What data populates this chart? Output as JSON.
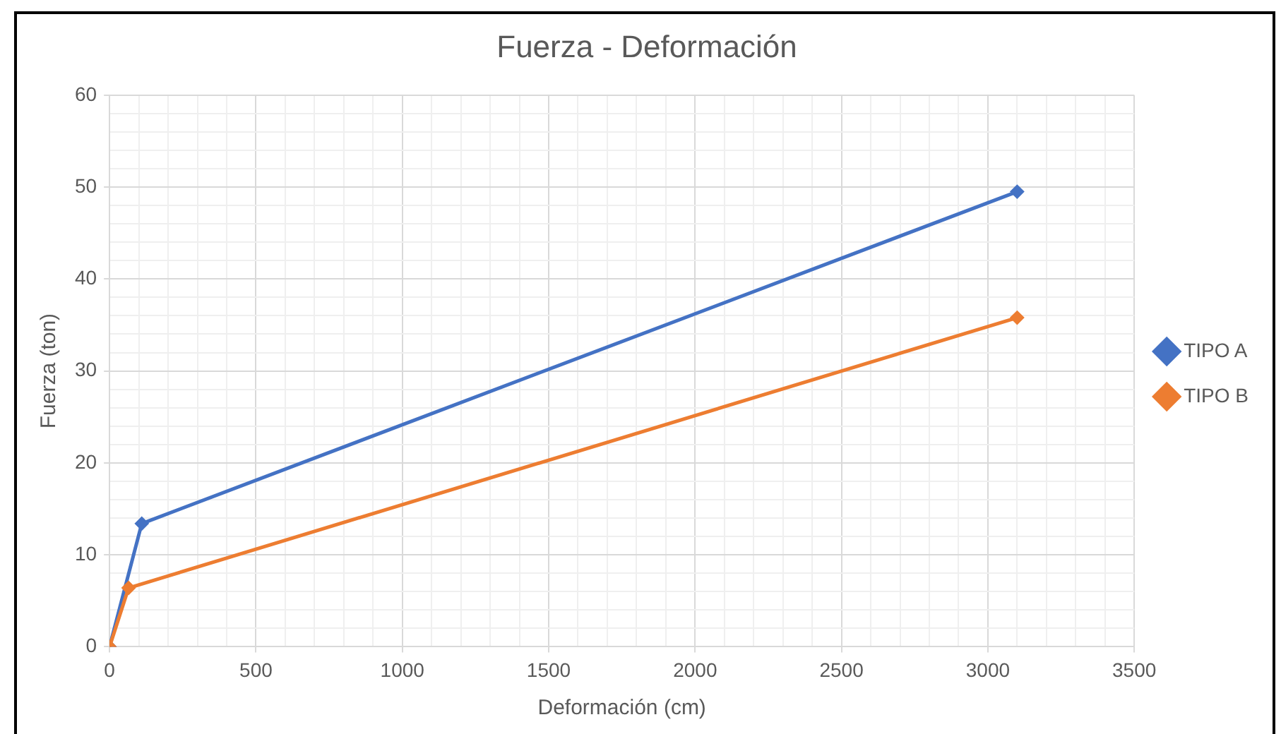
{
  "chart_data": {
    "type": "line",
    "title": "Fuerza - Deformación",
    "xlabel": "Deformación (cm)",
    "ylabel": "Fuerza (ton)",
    "series": [
      {
        "name": "TIPO A",
        "color": "#4472c4",
        "x": [
          0,
          110,
          3100
        ],
        "values": [
          0,
          13.4,
          49.5
        ]
      },
      {
        "name": "TIPO B",
        "color": "#ed7d31",
        "x": [
          0,
          65,
          3100
        ],
        "values": [
          0,
          6.4,
          35.8
        ]
      }
    ],
    "xlim": [
      0,
      3500
    ],
    "xticks": [
      0,
      {
        "value": 100,
        "label": null
      },
      {
        "value": 200,
        "label": null
      },
      {
        "value": 300,
        "label": null
      },
      {
        "value": 400,
        "label": null
      },
      500,
      {
        "value": 600,
        "label": null
      },
      {
        "value": 700,
        "label": null
      },
      {
        "value": 800,
        "label": null
      },
      {
        "value": 900,
        "label": null
      },
      1000,
      {
        "value": 1100,
        "label": null
      },
      {
        "value": 1200,
        "label": null
      },
      {
        "value": 1300,
        "label": null
      },
      {
        "value": 1400,
        "label": null
      },
      1500,
      {
        "value": 1600,
        "label": null
      },
      {
        "value": 1700,
        "label": null
      },
      {
        "value": 1800,
        "label": null
      },
      {
        "value": 1900,
        "label": null
      },
      2000,
      {
        "value": 2100,
        "label": null
      },
      {
        "value": 2200,
        "label": null
      },
      {
        "value": 2300,
        "label": null
      },
      {
        "value": 2400,
        "label": null
      },
      2500,
      {
        "value": 2600,
        "label": null
      },
      {
        "value": 2700,
        "label": null
      },
      {
        "value": 2800,
        "label": null
      },
      {
        "value": 2900,
        "label": null
      },
      3000,
      {
        "value": 3100,
        "label": null
      },
      {
        "value": 3200,
        "label": null
      },
      {
        "value": 3300,
        "label": null
      },
      {
        "value": 3400,
        "label": null
      },
      3500
    ],
    "ylim": [
      0,
      60
    ],
    "yticks": [
      0,
      {
        "value": 2,
        "label": null
      },
      {
        "value": 4,
        "label": null
      },
      {
        "value": 6,
        "label": null
      },
      {
        "value": 8,
        "label": null
      },
      10,
      {
        "value": 12,
        "label": null
      },
      {
        "value": 14,
        "label": null
      },
      {
        "value": 16,
        "label": null
      },
      {
        "value": 18,
        "label": null
      },
      20,
      {
        "value": 22,
        "label": null
      },
      {
        "value": 24,
        "label": null
      },
      {
        "value": 26,
        "label": null
      },
      {
        "value": 28,
        "label": null
      },
      30,
      {
        "value": 32,
        "label": null
      },
      {
        "value": 34,
        "label": null
      },
      {
        "value": 36,
        "label": null
      },
      {
        "value": 38,
        "label": null
      },
      40,
      {
        "value": 42,
        "label": null
      },
      {
        "value": 44,
        "label": null
      },
      {
        "value": 46,
        "label": null
      },
      {
        "value": 48,
        "label": null
      },
      50,
      {
        "value": 52,
        "label": null
      },
      {
        "value": 54,
        "label": null
      },
      {
        "value": 56,
        "label": null
      },
      {
        "value": 58,
        "label": null
      },
      60
    ],
    "grid": true,
    "legend": "right",
    "marker": "diamond",
    "line_style": "solid"
  }
}
